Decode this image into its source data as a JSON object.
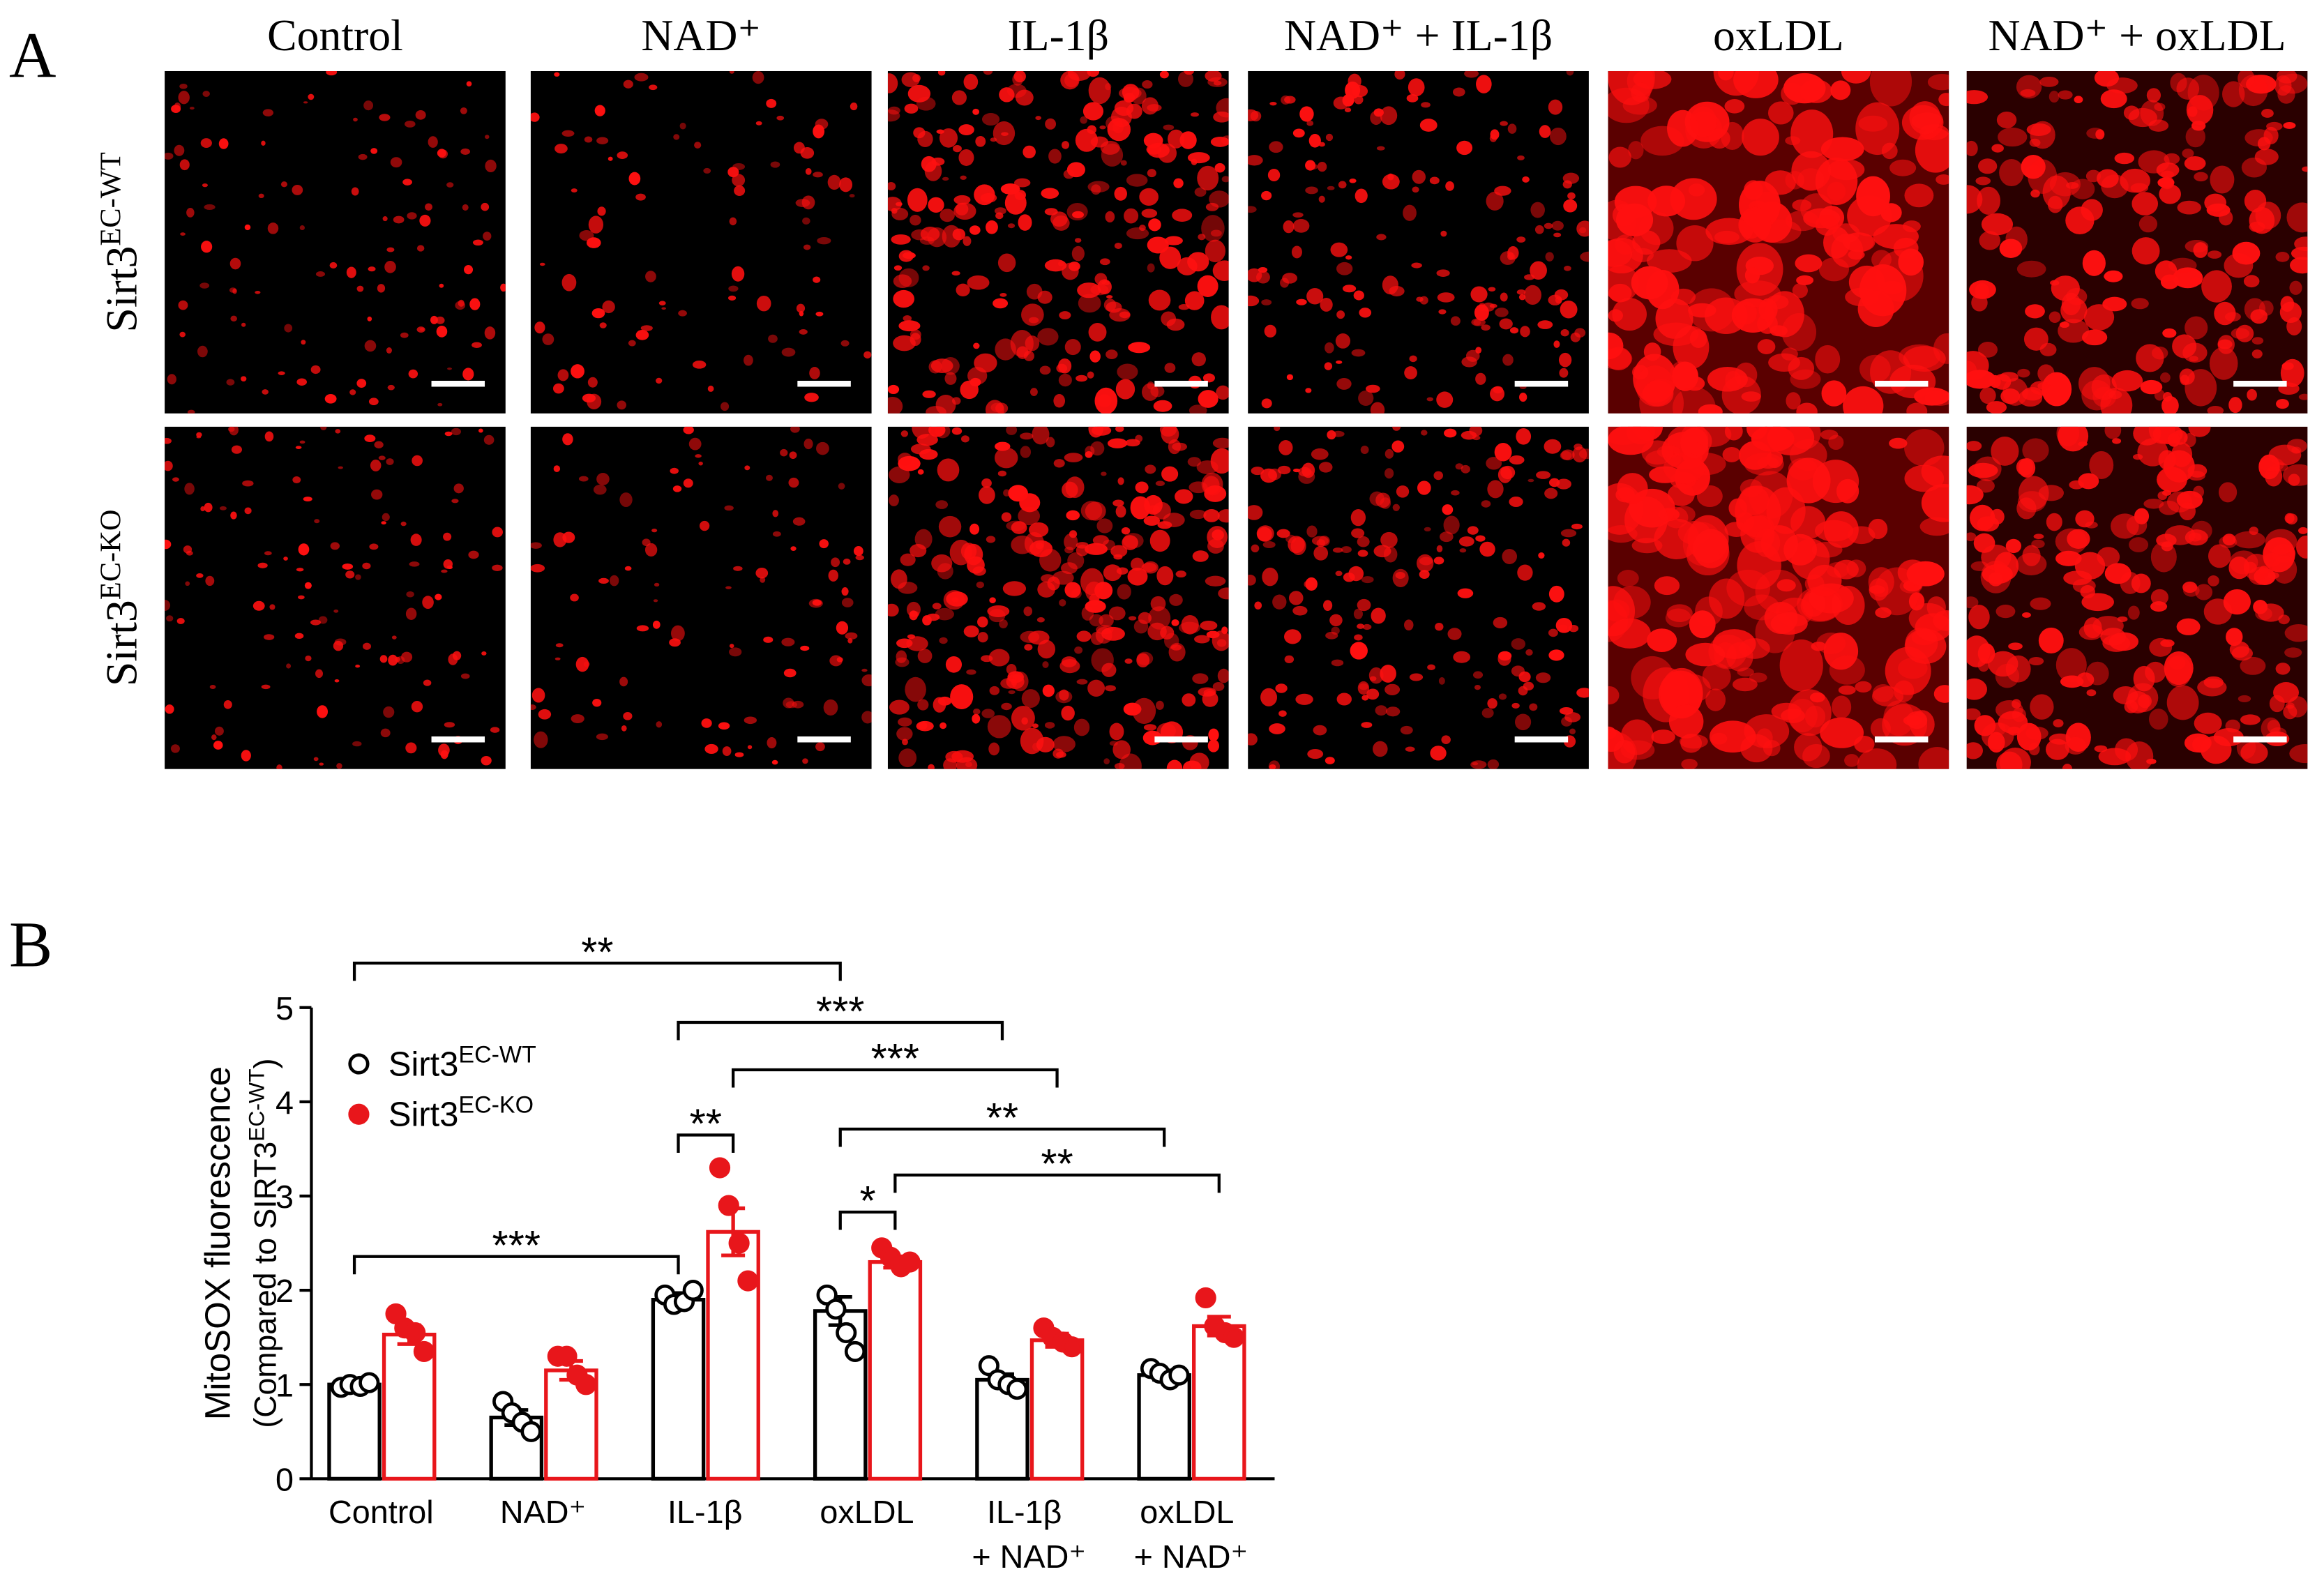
{
  "panel_a": {
    "label": "A",
    "columns": [
      "Control",
      "NAD⁺",
      "IL-1β",
      "NAD⁺ + IL-1β",
      "oxLDL",
      "NAD⁺ + oxLDL"
    ],
    "rows": [
      {
        "base": "Sirt3",
        "sup": "EC-WT"
      },
      {
        "base": "Sirt3",
        "sup": "EC-KO"
      }
    ]
  },
  "chart_data": {
    "type": "bar",
    "panel_label": "B",
    "y_label": "MitoSOX fluorescence",
    "y_label_sub": {
      "base": "(Compared to SIRT3",
      "sup": "EC-WT",
      "end": ")"
    },
    "categories": [
      "Control",
      "NAD⁺",
      "IL-1β",
      "oxLDL",
      "IL-1β + NAD⁺",
      "oxLDL + NAD⁺"
    ],
    "ylim": [
      0,
      5
    ],
    "yticks": [
      0,
      1,
      2,
      3,
      4,
      5
    ],
    "series": [
      {
        "name": "Sirt3",
        "name_sup": "EC-WT",
        "color": "#000000",
        "values": [
          1.0,
          0.65,
          1.9,
          1.78,
          1.05,
          1.1
        ],
        "errors": [
          0.04,
          0.08,
          0.07,
          0.15,
          0.06,
          0.05
        ],
        "points": [
          [
            0.97,
            1.0,
            0.98,
            1.02
          ],
          [
            0.82,
            0.7,
            0.6,
            0.5
          ],
          [
            1.95,
            1.85,
            1.88,
            2.0
          ],
          [
            1.95,
            1.8,
            1.55,
            1.35
          ],
          [
            1.2,
            1.05,
            1.0,
            0.95
          ],
          [
            1.17,
            1.12,
            1.05,
            1.1
          ]
        ]
      },
      {
        "name": "Sirt3",
        "name_sup": "EC-KO",
        "color": "#e8161b",
        "values": [
          1.53,
          1.15,
          2.62,
          2.3,
          1.47,
          1.62
        ],
        "errors": [
          0.1,
          0.1,
          0.25,
          0.06,
          0.07,
          0.1
        ],
        "points": [
          [
            1.75,
            1.6,
            1.55,
            1.35
          ],
          [
            1.3,
            1.3,
            1.1,
            1.0
          ],
          [
            3.3,
            2.9,
            2.5,
            2.1
          ],
          [
            2.45,
            2.35,
            2.25,
            2.3
          ],
          [
            1.6,
            1.5,
            1.45,
            1.4
          ],
          [
            1.92,
            1.62,
            1.55,
            1.5
          ]
        ]
      }
    ],
    "significance": [
      {
        "from": [
          0,
          0
        ],
        "to": [
          3,
          0
        ],
        "label": "**"
      },
      {
        "from": [
          2,
          0
        ],
        "to": [
          4,
          0
        ],
        "label": "***"
      },
      {
        "from": [
          2,
          1
        ],
        "to": [
          4,
          1
        ],
        "label": "***"
      },
      {
        "from": [
          2,
          0
        ],
        "to": [
          2,
          1
        ],
        "label": "**"
      },
      {
        "from": [
          3,
          0
        ],
        "to": [
          5,
          0
        ],
        "label": "**"
      },
      {
        "from": [
          3,
          0
        ],
        "to": [
          3,
          1
        ],
        "label": "*"
      },
      {
        "from": [
          3,
          1
        ],
        "to": [
          5,
          1
        ],
        "label": "**"
      },
      {
        "from": [
          0,
          0
        ],
        "to": [
          2,
          0
        ],
        "label": "***"
      }
    ]
  }
}
